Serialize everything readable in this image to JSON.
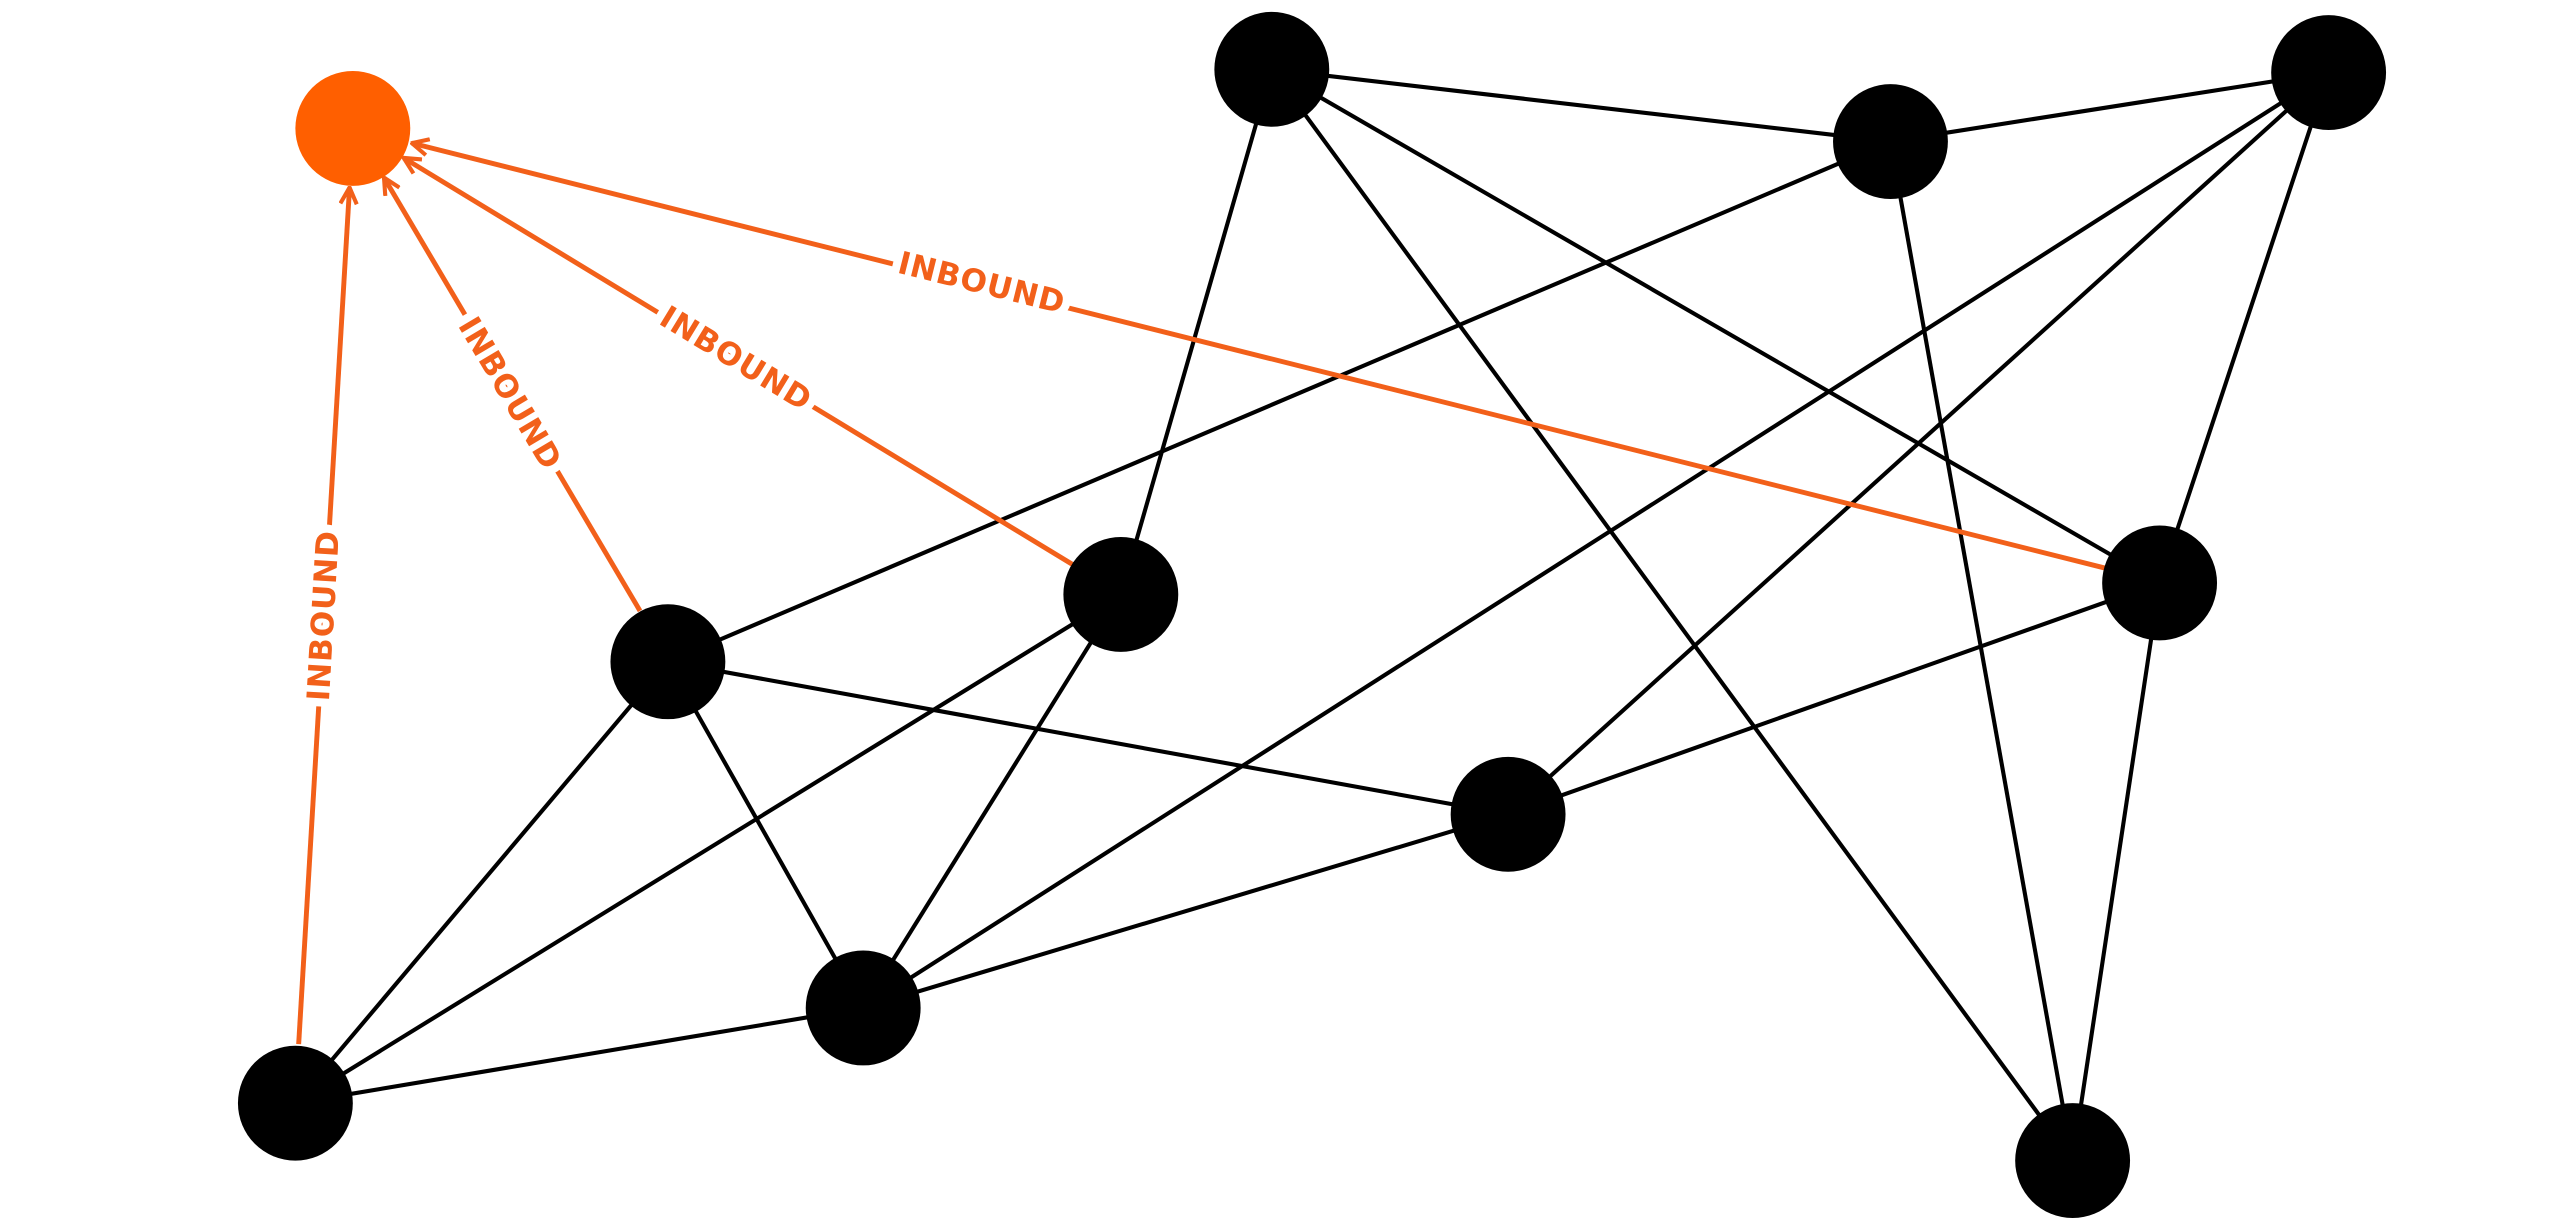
{
  "edges": [
    {
      "label": "INBOUND"
    },
    {
      "label": "INBOUND"
    },
    {
      "label": "INBOUND"
    },
    {
      "label": "INBOUND"
    }
  ]
}
